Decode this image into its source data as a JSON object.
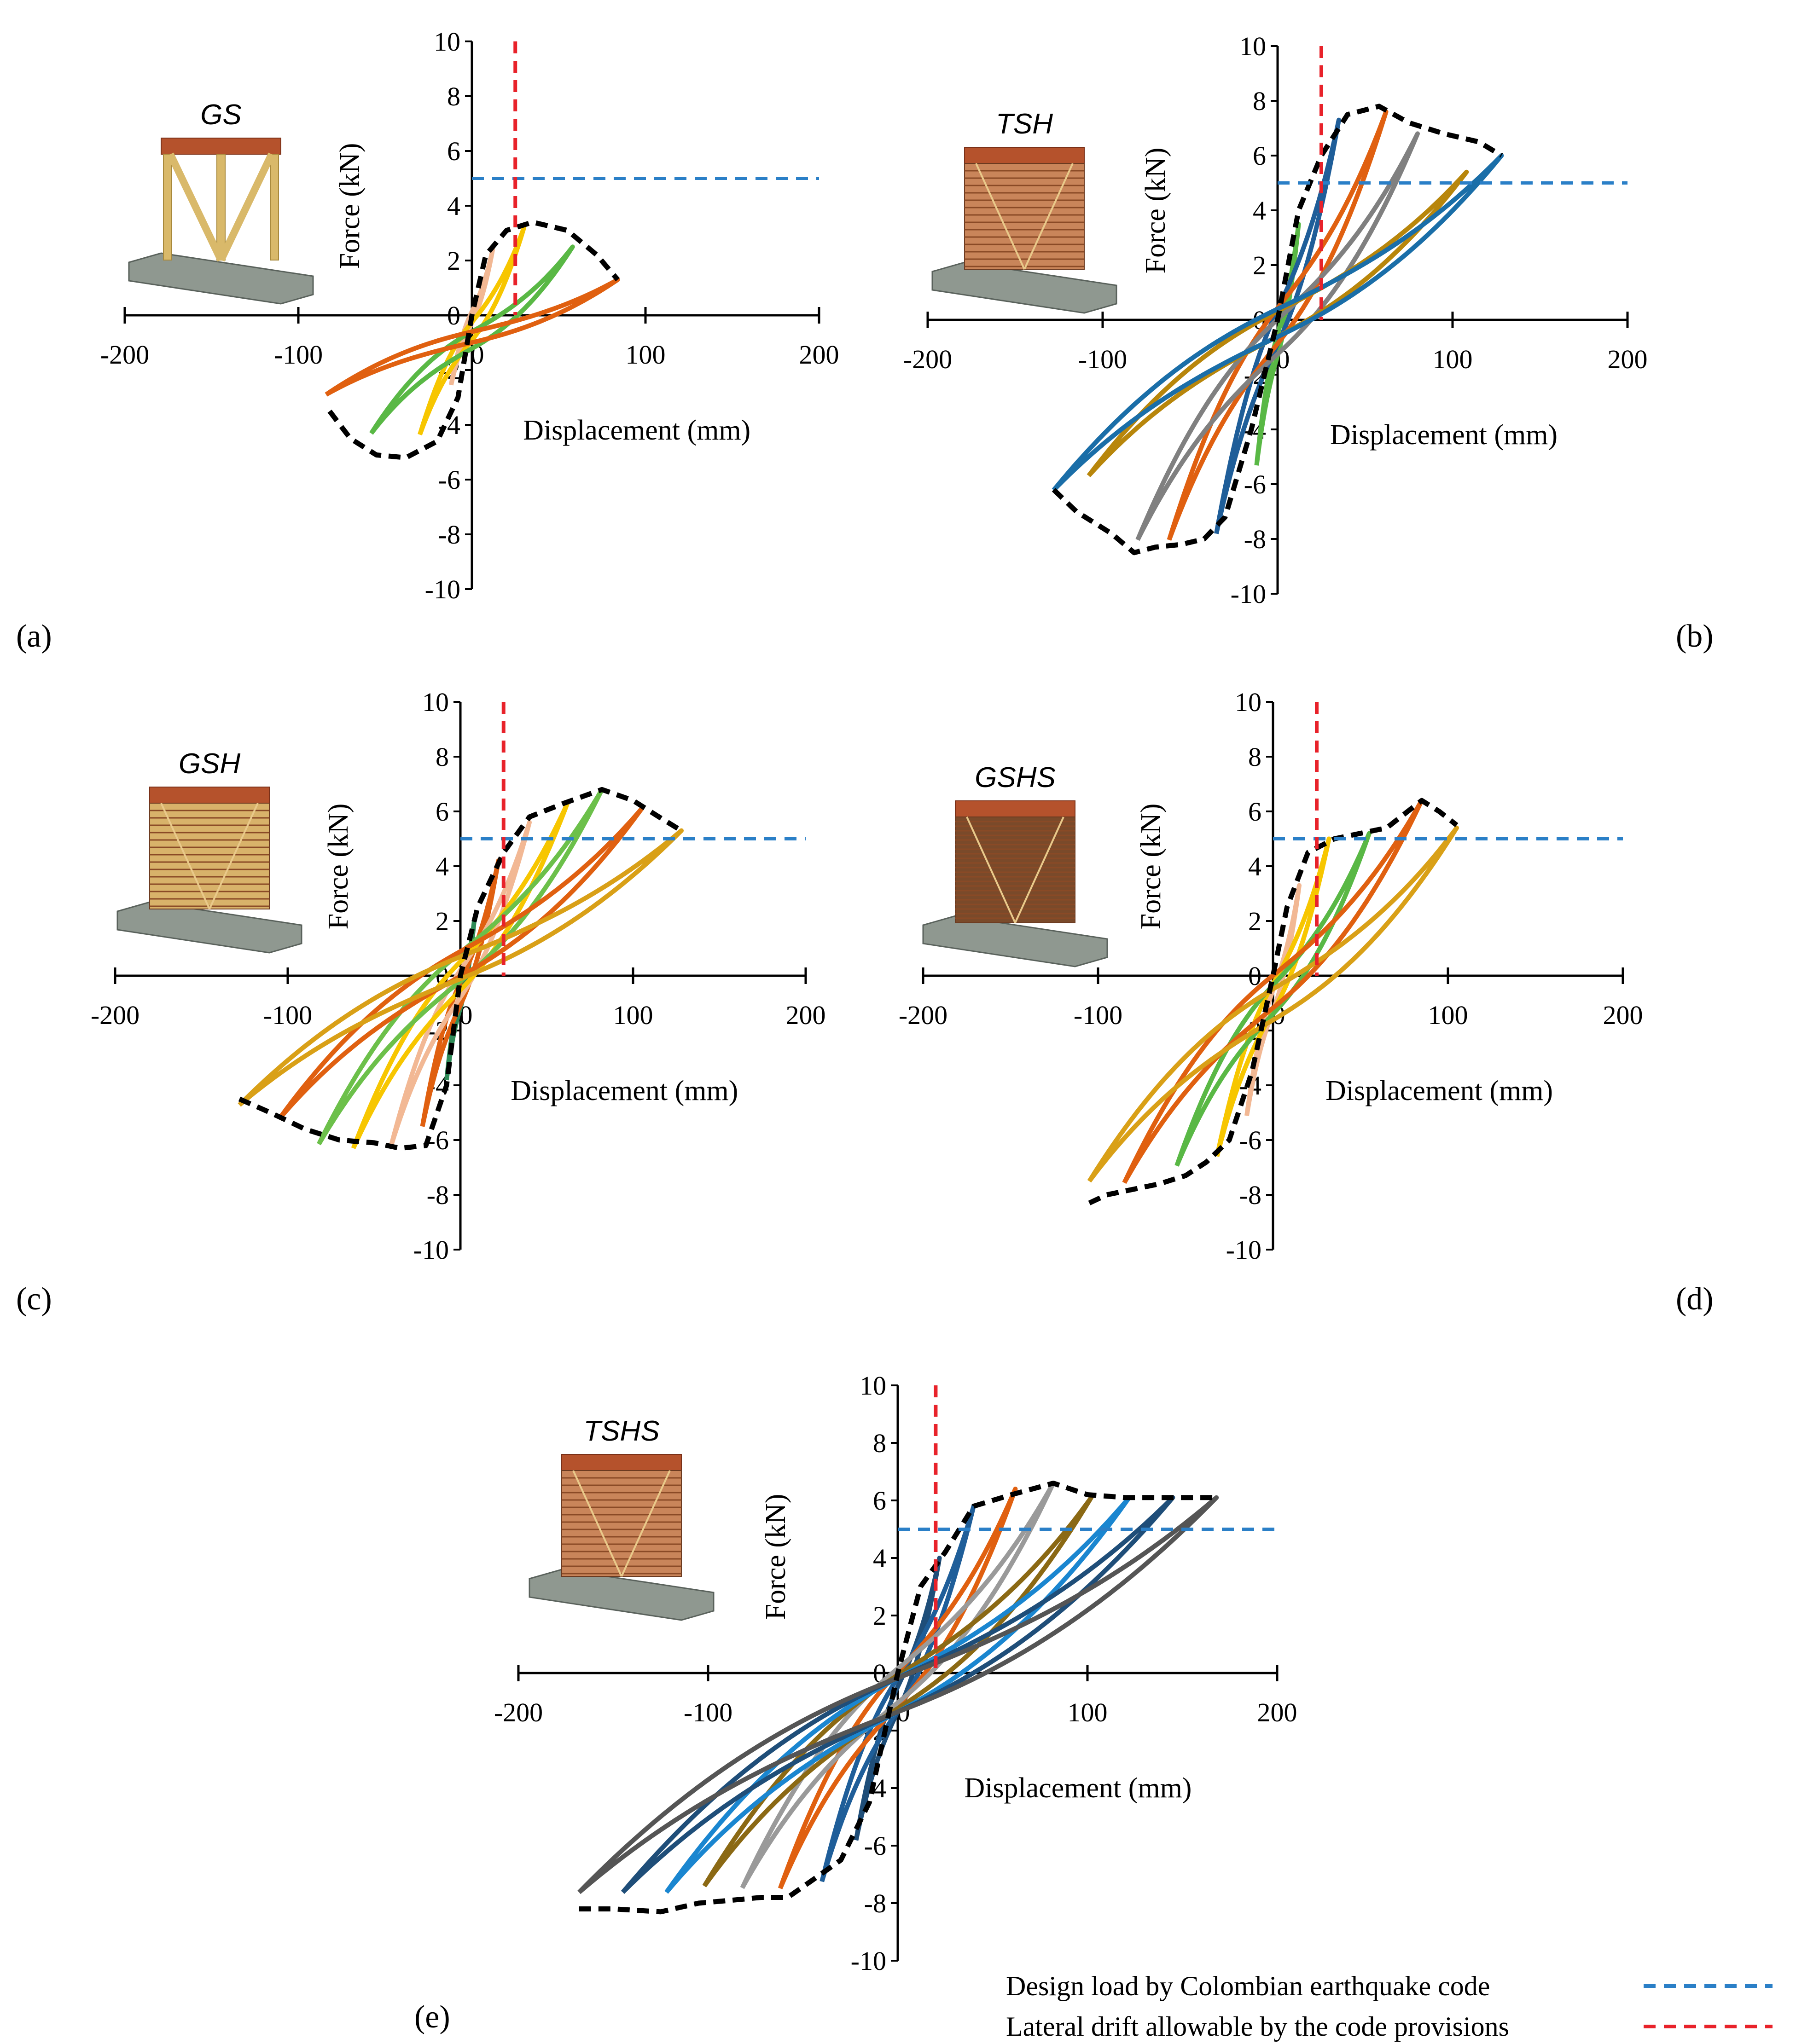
{
  "figure": {
    "legend": [
      {
        "label": "Design load by Colombian earthquake code",
        "color": "#2a7fc7"
      },
      {
        "label": "Lateral drift allowable by the code provisions",
        "color": "#e8222a"
      }
    ]
  },
  "chart_data": [
    {
      "type": "line",
      "panel_label": "(a)",
      "specimen": "GS",
      "xlabel": "Displacement (mm)",
      "ylabel": "Force (kN)",
      "xlim": [
        -200,
        200
      ],
      "ylim": [
        -10,
        10
      ],
      "xticks": [
        "-200",
        "-100",
        "0",
        "100",
        "200"
      ],
      "yticks": [
        "10",
        "8",
        "6",
        "4",
        "2",
        "0",
        "-2",
        "-4",
        "-6",
        "-8",
        "-10"
      ],
      "design_load_kN": 5,
      "drift_limit_mm": 25,
      "envelope": {
        "x": [
          -82,
          -70,
          -55,
          -38,
          -20,
          -8,
          0,
          8,
          20,
          35,
          55,
          72,
          84
        ],
        "y": [
          -3.5,
          -4.5,
          -5.1,
          -5.2,
          -4.6,
          -3.0,
          0,
          2.2,
          3.1,
          3.4,
          3.1,
          2.2,
          1.3
        ]
      },
      "loops": [
        {
          "color": "#f2b894",
          "amp": 12,
          "fmax": 2.4,
          "fmin": -2.6
        },
        {
          "color": "#f7c600",
          "amp": 30,
          "fmax": 3.2,
          "fmin": -4.8
        },
        {
          "color": "#59b845",
          "amp": 58,
          "fmax": 2.5,
          "fmin": -5.0
        },
        {
          "color": "#e06010",
          "amp": 84,
          "fmax": 1.3,
          "fmin": -3.5
        }
      ]
    },
    {
      "type": "line",
      "panel_label": "(b)",
      "specimen": "TSH",
      "xlabel": "Displacement (mm)",
      "ylabel": "Force (kN)",
      "xlim": [
        -200,
        200
      ],
      "ylim": [
        -10,
        10
      ],
      "xticks": [
        "-200",
        "-100",
        "0",
        "100",
        "200"
      ],
      "yticks": [
        "10",
        "8",
        "6",
        "4",
        "2",
        "0",
        "-2",
        "-4",
        "-6",
        "-8",
        "-10"
      ],
      "design_load_kN": 5,
      "drift_limit_mm": 25,
      "envelope": {
        "x": [
          -128,
          -115,
          -95,
          -82,
          -70,
          -55,
          -42,
          -30,
          -15,
          0,
          12,
          25,
          40,
          58,
          75,
          95,
          115,
          128
        ],
        "y": [
          -6.2,
          -7.0,
          -7.8,
          -8.5,
          -8.3,
          -8.2,
          -8.0,
          -7.2,
          -4.0,
          0,
          4.0,
          6.0,
          7.5,
          7.8,
          7.2,
          6.8,
          6.5,
          6.0
        ]
      },
      "loops": [
        {
          "color": "#59b845",
          "amp": 12,
          "fmax": 3.5,
          "fmin": -6.0
        },
        {
          "color": "#1f5e99",
          "amp": 35,
          "fmax": 7.3,
          "fmin": -8.0
        },
        {
          "color": "#e06010",
          "amp": 62,
          "fmax": 7.6,
          "fmin": -8.2
        },
        {
          "color": "#808080",
          "amp": 80,
          "fmax": 6.8,
          "fmin": -8.5
        },
        {
          "color": "#b8860b",
          "amp": 108,
          "fmax": 5.4,
          "fmin": -5.8
        },
        {
          "color": "#1a6ea8",
          "amp": 128,
          "fmax": 6.0,
          "fmin": -6.3
        }
      ]
    },
    {
      "type": "line",
      "panel_label": "(c)",
      "specimen": "GSH",
      "xlabel": "Displacement (mm)",
      "ylabel": "Force (kN)",
      "xlim": [
        -200,
        200
      ],
      "ylim": [
        -10,
        10
      ],
      "xticks": [
        "-200",
        "-100",
        "0",
        "100",
        "200"
      ],
      "yticks": [
        "10",
        "8",
        "6",
        "4",
        "2",
        "0",
        "-2",
        "-4",
        "-6",
        "-8",
        "-10"
      ],
      "design_load_kN": 5,
      "drift_limit_mm": 25,
      "envelope": {
        "x": [
          -128,
          -110,
          -90,
          -70,
          -50,
          -35,
          -20,
          -8,
          0,
          10,
          25,
          40,
          60,
          82,
          100,
          115,
          128
        ],
        "y": [
          -4.5,
          -5.0,
          -5.6,
          -6.0,
          -6.1,
          -6.3,
          -6.2,
          -4.0,
          0,
          2.5,
          4.5,
          5.8,
          6.3,
          6.8,
          6.4,
          5.8,
          5.3
        ]
      },
      "loops": [
        {
          "color": "#2e8b57",
          "amp": 8,
          "fmax": 2.0,
          "fmin": -4.5
        },
        {
          "color": "#e06010",
          "amp": 22,
          "fmax": 4.2,
          "fmin": -6.0
        },
        {
          "color": "#f2b894",
          "amp": 40,
          "fmax": 5.6,
          "fmin": -6.4
        },
        {
          "color": "#f7c600",
          "amp": 62,
          "fmax": 6.3,
          "fmin": -6.3
        },
        {
          "color": "#6cc04a",
          "amp": 82,
          "fmax": 6.8,
          "fmin": -5.9
        },
        {
          "color": "#e06010",
          "amp": 105,
          "fmax": 6.1,
          "fmin": -4.9
        },
        {
          "color": "#d9a017",
          "amp": 128,
          "fmax": 5.3,
          "fmin": -4.5
        }
      ]
    },
    {
      "type": "line",
      "panel_label": "(d)",
      "specimen": "GSHS",
      "xlabel": "Displacement (mm)",
      "ylabel": "Force (kN)",
      "xlim": [
        -200,
        200
      ],
      "ylim": [
        -10,
        10
      ],
      "xticks": [
        "-200",
        "-100",
        "0",
        "100",
        "200"
      ],
      "yticks": [
        "10",
        "8",
        "6",
        "4",
        "2",
        "0",
        "-2",
        "-4",
        "-6",
        "-8",
        "-10"
      ],
      "design_load_kN": 5,
      "drift_limit_mm": 25,
      "envelope": {
        "x": [
          -105,
          -95,
          -80,
          -65,
          -50,
          -38,
          -25,
          -12,
          0,
          8,
          20,
          35,
          50,
          65,
          85,
          95,
          105
        ],
        "y": [
          -8.3,
          -8.0,
          -7.8,
          -7.6,
          -7.3,
          -6.8,
          -6.0,
          -3.5,
          0,
          2.5,
          4.5,
          5.0,
          5.2,
          5.4,
          6.4,
          6.0,
          5.5
        ]
      },
      "loops": [
        {
          "color": "#f2b894",
          "amp": 15,
          "fmax": 3.3,
          "fmin": -5.8
        },
        {
          "color": "#f7c600",
          "amp": 32,
          "fmax": 5.0,
          "fmin": -7.2
        },
        {
          "color": "#59b845",
          "amp": 55,
          "fmax": 5.2,
          "fmin": -7.6
        },
        {
          "color": "#e06010",
          "amp": 85,
          "fmax": 6.4,
          "fmin": -8.0
        },
        {
          "color": "#d9a017",
          "amp": 105,
          "fmax": 5.4,
          "fmin": -8.3
        }
      ]
    },
    {
      "type": "line",
      "panel_label": "(e)",
      "specimen": "TSHS",
      "xlabel": "Displacement (mm)",
      "ylabel": "Force (kN)",
      "xlim": [
        -200,
        200
      ],
      "ylim": [
        -10,
        10
      ],
      "xticks": [
        "-200",
        "-100",
        "0",
        "100",
        "200"
      ],
      "yticks": [
        "10",
        "8",
        "6",
        "4",
        "2",
        "0",
        "-2",
        "-4",
        "-6",
        "-8",
        "-10"
      ],
      "design_load_kN": 5,
      "drift_limit_mm": 20,
      "envelope": {
        "x": [
          -168,
          -150,
          -125,
          -105,
          -88,
          -72,
          -58,
          -45,
          -30,
          -15,
          0,
          12,
          25,
          40,
          60,
          82,
          100,
          120,
          140,
          168
        ],
        "y": [
          -8.2,
          -8.2,
          -8.3,
          -8.0,
          -7.9,
          -7.8,
          -7.8,
          -7.2,
          -6.5,
          -4.5,
          0,
          3.0,
          4.2,
          5.8,
          6.2,
          6.6,
          6.2,
          6.1,
          6.1,
          6.1
        ]
      },
      "loops": [
        {
          "color": "#1f4e79",
          "amp": 22,
          "fmax": 4.0,
          "fmin": -6.5
        },
        {
          "color": "#1f5e99",
          "amp": 40,
          "fmax": 5.8,
          "fmin": -7.8
        },
        {
          "color": "#e06010",
          "amp": 62,
          "fmax": 6.4,
          "fmin": -7.9
        },
        {
          "color": "#9a9a9a",
          "amp": 82,
          "fmax": 6.6,
          "fmin": -7.8
        },
        {
          "color": "#8b6914",
          "amp": 102,
          "fmax": 6.1,
          "fmin": -7.9
        },
        {
          "color": "#1a86d0",
          "amp": 122,
          "fmax": 6.1,
          "fmin": -8.2
        },
        {
          "color": "#1f4e79",
          "amp": 145,
          "fmax": 6.1,
          "fmin": -8.2
        },
        {
          "color": "#555555",
          "amp": 168,
          "fmax": 6.1,
          "fmin": -8.2
        }
      ]
    }
  ]
}
